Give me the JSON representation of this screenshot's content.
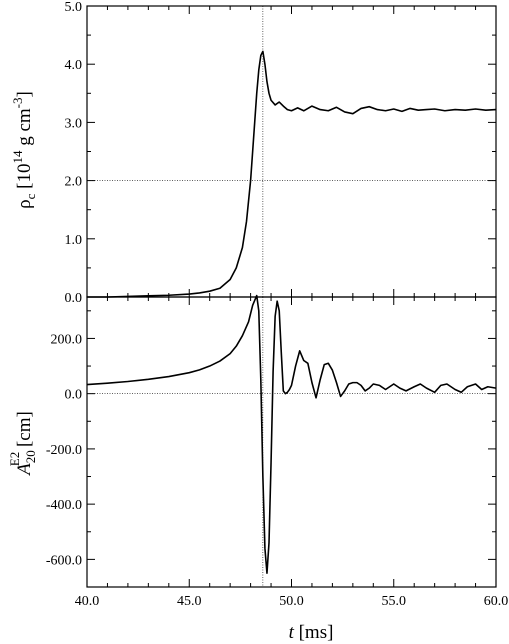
{
  "chart_data": [
    {
      "type": "line",
      "xlabel": "t [ms]",
      "xlabel_parts": {
        "var": "t",
        "unit": " [ms]"
      },
      "ylabel": "ρc [10^14 g cm^-3]",
      "ylabel_parts": {
        "rho": "ρ",
        "sub": "c",
        "open": " [10",
        "exp14": "14",
        "g": " g cm",
        "expm3": "-3",
        "close": "]"
      },
      "xlim": [
        40.0,
        60.0
      ],
      "ylim": [
        0.0,
        5.0
      ],
      "yticks": [
        "0.0",
        "1.0",
        "2.0",
        "3.0",
        "4.0",
        "5.0"
      ],
      "grid": {
        "horizontal": 2.0,
        "vertical": 48.6
      },
      "series": [
        {
          "x": [
            40.0,
            41.0,
            42.0,
            43.0,
            44.0,
            45.0,
            45.5,
            46.0,
            46.5,
            47.0,
            47.3,
            47.6,
            47.8,
            48.0,
            48.1,
            48.2,
            48.3,
            48.4,
            48.5,
            48.6,
            48.7,
            48.8,
            48.9,
            49.0,
            49.2,
            49.4,
            49.6,
            49.8,
            50.0,
            50.3,
            50.6,
            51.0,
            51.4,
            51.8,
            52.2,
            52.6,
            53.0,
            53.4,
            53.8,
            54.2,
            54.6,
            55.0,
            55.4,
            55.8,
            56.2,
            56.6,
            57.0,
            57.5,
            58.0,
            58.5,
            59.0,
            59.5,
            60.0
          ],
          "y": [
            0.0,
            0.0,
            0.01,
            0.02,
            0.03,
            0.05,
            0.07,
            0.1,
            0.15,
            0.3,
            0.5,
            0.85,
            1.3,
            2.0,
            2.5,
            3.0,
            3.5,
            3.9,
            4.15,
            4.22,
            4.0,
            3.7,
            3.5,
            3.38,
            3.3,
            3.35,
            3.28,
            3.22,
            3.2,
            3.25,
            3.2,
            3.28,
            3.22,
            3.2,
            3.26,
            3.18,
            3.15,
            3.24,
            3.27,
            3.22,
            3.2,
            3.23,
            3.19,
            3.24,
            3.21,
            3.22,
            3.23,
            3.2,
            3.22,
            3.21,
            3.23,
            3.21,
            3.22
          ]
        }
      ]
    },
    {
      "type": "line",
      "xlabel": "t [ms]",
      "ylabel": "A20 E2 [cm]",
      "ylabel_parts": {
        "A": "A",
        "sub": "20",
        "sup": "E2",
        "unit": " [cm]"
      },
      "xlim": [
        40.0,
        60.0
      ],
      "ylim": [
        -700.0,
        350.0
      ],
      "xticks": [
        "40.0",
        "45.0",
        "50.0",
        "55.0",
        "60.0"
      ],
      "yticks": [
        "-600.0",
        "-400.0",
        "-200.0",
        "0.0",
        "200.0"
      ],
      "grid": {
        "horizontal": 0.0,
        "vertical": 48.6
      },
      "series": [
        {
          "x": [
            40.0,
            41.0,
            42.0,
            43.0,
            44.0,
            45.0,
            45.5,
            46.0,
            46.5,
            47.0,
            47.3,
            47.6,
            47.9,
            48.1,
            48.3,
            48.4,
            48.5,
            48.6,
            48.7,
            48.8,
            48.9,
            49.0,
            49.1,
            49.2,
            49.3,
            49.4,
            49.5,
            49.6,
            49.7,
            49.8,
            49.9,
            50.0,
            50.2,
            50.4,
            50.6,
            50.8,
            51.0,
            51.2,
            51.4,
            51.6,
            51.8,
            52.0,
            52.2,
            52.4,
            52.6,
            52.8,
            53.0,
            53.2,
            53.4,
            53.6,
            53.8,
            54.0,
            54.3,
            54.6,
            55.0,
            55.3,
            55.6,
            56.0,
            56.3,
            56.6,
            57.0,
            57.3,
            57.6,
            58.0,
            58.3,
            58.6,
            59.0,
            59.3,
            59.6,
            60.0
          ],
          "y": [
            33,
            38,
            44,
            52,
            62,
            76,
            86,
            100,
            118,
            145,
            172,
            210,
            260,
            320,
            355,
            300,
            50,
            -300,
            -560,
            -650,
            -540,
            -250,
            80,
            280,
            335,
            300,
            150,
            10,
            0,
            5,
            15,
            30,
            100,
            155,
            120,
            110,
            40,
            -15,
            50,
            105,
            110,
            85,
            40,
            -10,
            10,
            35,
            40,
            40,
            30,
            10,
            20,
            35,
            30,
            15,
            35,
            20,
            10,
            25,
            35,
            20,
            5,
            30,
            35,
            15,
            5,
            25,
            35,
            15,
            25,
            20
          ]
        }
      ]
    }
  ]
}
